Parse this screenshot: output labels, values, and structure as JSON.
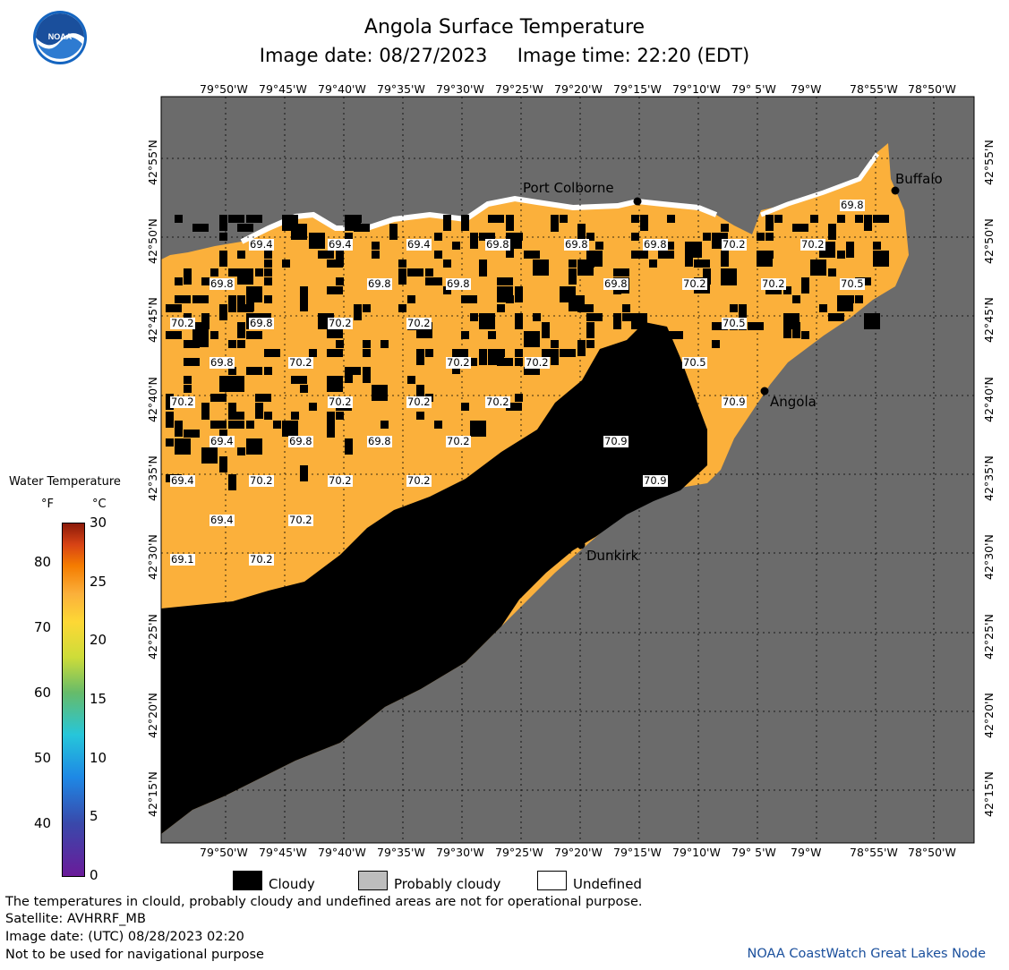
{
  "header": {
    "title": "Angola Surface Temperature",
    "subtitle": "Image date: 08/27/2023     Image time: 22:20 (EDT)"
  },
  "logo": {
    "text": "NOAA",
    "icon": "noaa-logo-icon",
    "color": "#1565c0"
  },
  "axes": {
    "lon_labels": [
      "79°50'W",
      "79°45'W",
      "79°40'W",
      "79°35'W",
      "79°30'W",
      "79°25'W",
      "79°20'W",
      "79°15'W",
      "79°10'W",
      "79° 5'W",
      "79°W",
      "78°55'W",
      "78°50'W"
    ],
    "lat_labels": [
      "42°55'N",
      "42°50'N",
      "42°45'N",
      "42°40'N",
      "42°35'N",
      "42°30'N",
      "42°25'N",
      "42°20'N",
      "42°15'N"
    ]
  },
  "cities": [
    {
      "name": "Port Colborne"
    },
    {
      "name": "Buffalo"
    },
    {
      "name": "Angola"
    },
    {
      "name": "Dunkirk"
    }
  ],
  "temps": [
    "69.4",
    "69.4",
    "69.4",
    "69.8",
    "69.8",
    "69.8",
    "70.2",
    "70.2",
    "69.8",
    "69.8",
    "69.8",
    "69.8",
    "69.8",
    "70.2",
    "70.2",
    "70.5",
    "70.2",
    "69.8",
    "70.2",
    "70.2",
    "70.5",
    "69.8",
    "70.2",
    "70.2",
    "70.2",
    "70.5",
    "70.2",
    "70.2",
    "70.2",
    "70.2",
    "70.9",
    "69.4",
    "69.8",
    "69.8",
    "70.2",
    "70.9",
    "69.4",
    "70.2",
    "70.2",
    "70.2",
    "70.9",
    "69.4",
    "70.2",
    "69.1",
    "70.2"
  ],
  "legend": {
    "title": "Water Temperature",
    "unit_f": "°F",
    "unit_c": "°C",
    "f_ticks": [
      "80",
      "70",
      "60",
      "50",
      "40"
    ],
    "c_ticks": [
      "30",
      "25",
      "20",
      "15",
      "10",
      "5",
      "0"
    ],
    "colors": {
      "water": "#fbb03b",
      "cloud": "#000000",
      "land": "#6b6b6b",
      "undefined": "#ffffff"
    }
  },
  "key": {
    "cloudy": "Cloudy",
    "probably_cloudy": "Probably cloudy",
    "undefined": "Undefined"
  },
  "notes": {
    "disclaimer": "The temperatures in clould, probably cloudy and undefined areas are not for operational purpose.",
    "satellite": "Satellite: AVHRRF_MB",
    "utc_date": "Image date: (UTC) 08/28/2023  02:20",
    "nav": "Not to be used for navigational purpose",
    "credit": "NOAA CoastWatch Great Lakes Node"
  }
}
